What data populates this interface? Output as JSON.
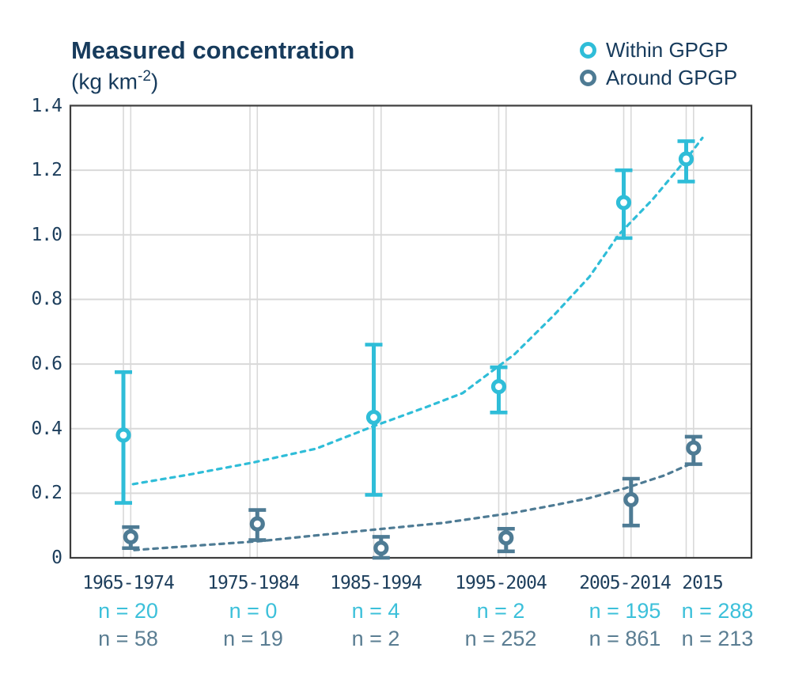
{
  "title": {
    "text": "Measured concentration",
    "unit": {
      "pre": "(kg km",
      "sup": "-2",
      "post": ")"
    }
  },
  "legend": [
    {
      "label": "Within GPGP",
      "color": "#2fbdd8"
    },
    {
      "label": "Around GPGP",
      "color": "#4e7b94"
    }
  ],
  "colors": {
    "within": "#2fbdd8",
    "around": "#4e7b94",
    "n_within_text": "#3cc0da",
    "n_around_text": "#5a7d92",
    "axis_text": "#1d3e5c",
    "grid": "#d9d9d9",
    "axis": "#3d3d3d",
    "background": "#ffffff"
  },
  "chart_data": {
    "type": "scatter",
    "title": "Measured concentration (kg km-2)",
    "xlabel": "",
    "ylabel": "kg km-2",
    "ylim": [
      0,
      1.4
    ],
    "grid": true,
    "legend_position": "top-right",
    "categories": [
      "1965-1974",
      "1975-1984",
      "1985-1994",
      "1995-2004",
      "2005-2014",
      "2015"
    ],
    "yticks": [
      {
        "value": 1.4,
        "label": "1.4"
      },
      {
        "value": 1.2,
        "label": "1.2"
      },
      {
        "value": 1.0,
        "label": "1.0"
      },
      {
        "value": 0.8,
        "label": "0.8"
      },
      {
        "value": 0.6,
        "label": "0.6"
      },
      {
        "value": 0.4,
        "label": "0.4"
      },
      {
        "value": 0.2,
        "label": "0.2"
      },
      {
        "value": 0.0,
        "label": "0"
      }
    ],
    "n_labels_prefix": "n = ",
    "series": [
      {
        "name": "Within GPGP",
        "color": "#2fbdd8",
        "n": [
          20,
          0,
          4,
          2,
          195,
          288
        ],
        "values": [
          0.38,
          null,
          0.435,
          0.53,
          1.1,
          1.235
        ],
        "err_low": [
          0.17,
          null,
          0.195,
          0.45,
          0.99,
          1.165
        ],
        "err_high": [
          0.575,
          null,
          0.66,
          0.59,
          1.2,
          1.29
        ],
        "trend": {
          "x_frac": [
            0.092,
            0.175,
            0.268,
            0.361,
            0.446,
            0.524,
            0.576,
            0.652,
            0.71,
            0.762,
            0.805,
            0.855,
            0.905,
            0.928
          ],
          "values": [
            0.228,
            0.258,
            0.295,
            0.338,
            0.408,
            0.468,
            0.51,
            0.63,
            0.751,
            0.87,
            1.0,
            1.11,
            1.236,
            1.3
          ]
        }
      },
      {
        "name": "Around GPGP",
        "color": "#4e7b94",
        "n": [
          58,
          19,
          2,
          252,
          861,
          213
        ],
        "values": [
          0.065,
          0.105,
          0.03,
          0.062,
          0.18,
          0.34
        ],
        "err_low": [
          0.03,
          0.055,
          0.0,
          0.02,
          0.1,
          0.29
        ],
        "err_high": [
          0.095,
          0.148,
          0.065,
          0.09,
          0.245,
          0.375
        ],
        "trend": {
          "x_frac": [
            0.094,
            0.199,
            0.28,
            0.359,
            0.454,
            0.547,
            0.652,
            0.71,
            0.76,
            0.814,
            0.872,
            0.915
          ],
          "values": [
            0.024,
            0.04,
            0.052,
            0.069,
            0.089,
            0.108,
            0.14,
            0.163,
            0.184,
            0.215,
            0.255,
            0.295
          ]
        }
      }
    ]
  }
}
